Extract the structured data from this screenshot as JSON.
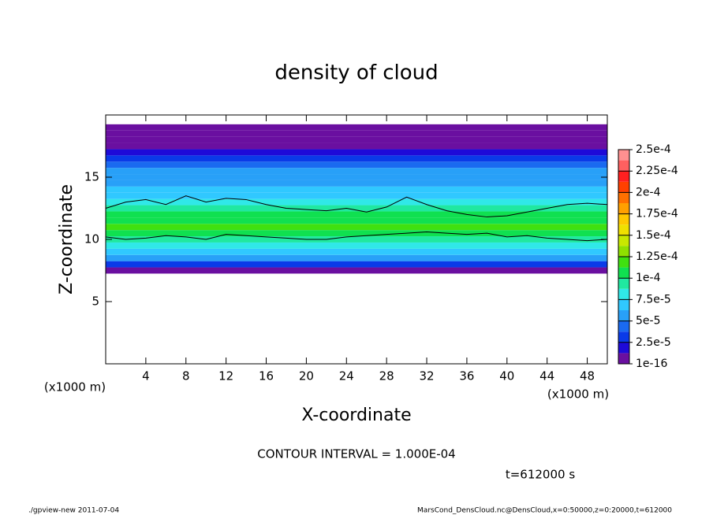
{
  "chart_data": {
    "type": "heatmap",
    "title": "density of cloud",
    "x_label": "X-coordinate",
    "y_label": "Z-coordinate",
    "x_unit_left": "(x1000 m)",
    "x_unit_right": "(x1000 m)",
    "xlim": [
      0,
      50
    ],
    "ylim": [
      0,
      20
    ],
    "xticks": [
      4,
      8,
      12,
      16,
      20,
      24,
      28,
      32,
      36,
      40,
      44,
      48
    ],
    "yticks": [
      5,
      10,
      15
    ],
    "z": [
      7.5,
      8,
      8.5,
      9,
      9.5,
      10,
      10.5,
      11,
      11.5,
      12,
      12.5,
      13,
      13.5,
      14,
      14.5,
      15,
      15.5,
      16,
      16.5,
      17,
      17.5,
      18,
      18.5,
      19
    ],
    "density": [
      1e-05,
      3e-05,
      5e-05,
      6.5e-05,
      8e-05,
      9.5e-05,
      0.00011,
      0.000115,
      0.00011,
      0.000105,
      9.5e-05,
      8e-05,
      7e-05,
      6.5e-05,
      6e-05,
      5.5e-05,
      5e-05,
      4e-05,
      3.5e-05,
      2e-05,
      5e-06,
      3e-06,
      1e-06,
      1e-16
    ],
    "levels": [
      1e-16,
      1.25e-05,
      2.5e-05,
      3.75e-05,
      5e-05,
      6.25e-05,
      7.5e-05,
      8.75e-05,
      0.0001,
      0.0001125,
      0.000125,
      0.0001375,
      0.00015,
      0.0001625,
      0.000175,
      0.0001875,
      0.0002,
      0.0002125,
      0.000225,
      0.0002375,
      0.00025
    ],
    "colors": [
      "#6a0fa0",
      "#1e0ad8",
      "#0a3ae8",
      "#1a6af0",
      "#28a0f8",
      "#30c8ff",
      "#30e8e8",
      "#20e8a0",
      "#10e050",
      "#40e010",
      "#90e000",
      "#c8e800",
      "#f0e000",
      "#ffc800",
      "#ffa000",
      "#ff7000",
      "#ff4000",
      "#ff2020",
      "#ff6060",
      "#ff9090"
    ],
    "colorbar_ticks": [
      {
        "value": 1e-16,
        "label": "1e-16"
      },
      {
        "value": 2.5e-05,
        "label": "2.5e-5"
      },
      {
        "value": 5e-05,
        "label": "5e-5"
      },
      {
        "value": 7.5e-05,
        "label": "7.5e-5"
      },
      {
        "value": 0.0001,
        "label": "1e-4"
      },
      {
        "value": 0.000125,
        "label": "1.25e-4"
      },
      {
        "value": 0.00015,
        "label": "1.5e-4"
      },
      {
        "value": 0.000175,
        "label": "1.75e-4"
      },
      {
        "value": 0.0002,
        "label": "2e-4"
      },
      {
        "value": 0.000225,
        "label": "2.25e-4"
      },
      {
        "value": 0.00025,
        "label": "2.5e-4"
      }
    ],
    "contour": {
      "x": [
        0,
        2,
        4,
        6,
        8,
        10,
        12,
        14,
        16,
        18,
        20,
        22,
        24,
        26,
        28,
        30,
        32,
        34,
        36,
        38,
        40,
        42,
        44,
        46,
        48,
        50
      ],
      "z_high": [
        12.5,
        13,
        13.2,
        12.8,
        13.5,
        13.0,
        13.3,
        13.2,
        12.8,
        12.5,
        12.4,
        12.3,
        12.5,
        12.2,
        12.6,
        13.4,
        12.8,
        12.3,
        12.0,
        11.8,
        11.9,
        12.2,
        12.5,
        12.8,
        12.9,
        12.8
      ],
      "z_low": [
        10.2,
        10.0,
        10.1,
        10.3,
        10.2,
        10.0,
        10.4,
        10.3,
        10.2,
        10.1,
        10.0,
        10.0,
        10.2,
        10.3,
        10.4,
        10.5,
        10.6,
        10.5,
        10.4,
        10.5,
        10.2,
        10.3,
        10.1,
        10.0,
        9.9,
        10.0
      ]
    },
    "contour_note": "CONTOUR INTERVAL = 1.000E-04",
    "time_note": "t=612000 s",
    "footer_left": "./gpview-new  2011-07-04",
    "footer_right": "MarsCond_DensCloud.nc@DensCloud,x=0:50000,z=0:20000,t=612000"
  }
}
